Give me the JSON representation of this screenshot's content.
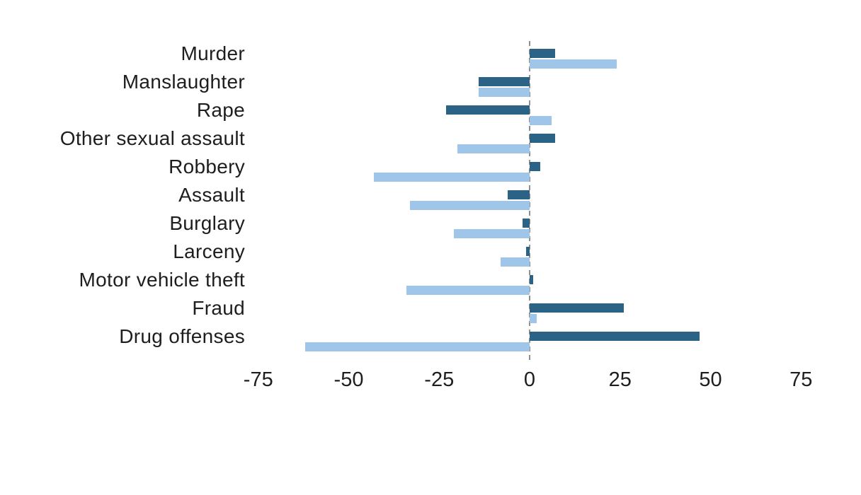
{
  "chart_data": {
    "type": "bar",
    "orientation": "horizontal",
    "diverging": true,
    "title": "",
    "xlabel": "",
    "ylabel": "",
    "grid": false,
    "zero_line_style": "dashed",
    "legend": "none visible",
    "categories": [
      "Murder",
      "Manslaughter",
      "Rape",
      "Other sexual assault",
      "Robbery",
      "Assault",
      "Burglary",
      "Larceny",
      "Motor vehicle theft",
      "Fraud",
      "Drug offenses"
    ],
    "series": [
      {
        "name": "dark-blue-series",
        "color": "#2a6386",
        "values": [
          7,
          -14,
          -23,
          7,
          3,
          -6,
          -2,
          -1,
          1,
          26,
          47
        ]
      },
      {
        "name": "light-blue-series",
        "color": "#9fc5e8",
        "values": [
          24,
          -14,
          6,
          -20,
          -43,
          -33,
          -21,
          -8,
          -34,
          2,
          -62
        ]
      }
    ],
    "x_ticks": [
      -75,
      -50,
      -25,
      0,
      25,
      50,
      75
    ],
    "xlim": [
      -88,
      90
    ]
  },
  "axis": {
    "tick_labels": [
      "-75",
      "-50",
      "-25",
      "0",
      "25",
      "50",
      "75"
    ]
  },
  "colors": {
    "dark_series": "#2a6386",
    "light_series": "#9fc5e8",
    "zero_line": "#8f8f8f",
    "text": "#1e1e1e",
    "background": "#ffffff"
  }
}
